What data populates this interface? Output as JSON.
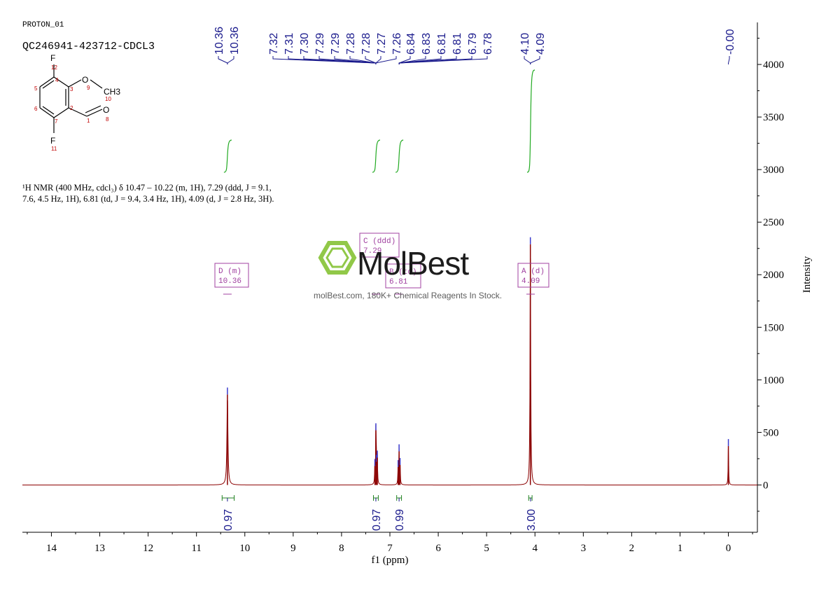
{
  "header": {
    "program": "PROTON_01",
    "sample": "QC246941-423712-CDCL3"
  },
  "description": {
    "text": "¹H NMR (400 MHz, cdcl₃) δ 10.47 – 10.22 (m, 1H), 7.29 (ddd, J = 9.1, 7.6, 4.5 Hz, 1H), 6.81 (td, J = 9.4, 3.4 Hz, 1H), 4.09 (d, J = 2.8 Hz, 3H)."
  },
  "structure": {
    "atoms": [
      {
        "label": "F",
        "index": "12"
      },
      {
        "label": "O",
        "index": "9"
      },
      {
        "label": "CH3",
        "index": "10"
      },
      {
        "label": "O",
        "index": "8"
      },
      {
        "label": "F",
        "index": "11"
      }
    ],
    "ring_indices": [
      "4",
      "3",
      "5",
      "2",
      "6",
      "7",
      "1"
    ]
  },
  "watermark": {
    "brand": "MolBest",
    "tagline": "molBest.com, 180K+ Chemical Reagents In Stock."
  },
  "chart_data": {
    "type": "line",
    "xlabel": "f1 (ppm)",
    "ylabel": "Intensity",
    "xlim": [
      14.6,
      -0.6
    ],
    "ylim": [
      -450,
      4400
    ],
    "x_ticks": [
      14,
      13,
      12,
      11,
      10,
      9,
      8,
      7,
      6,
      5,
      4,
      3,
      2,
      1,
      0
    ],
    "y_ticks": [
      0,
      500,
      1000,
      1500,
      2000,
      2500,
      3000,
      3500,
      4000
    ],
    "spectrum_color": "#8b0000",
    "peaks": [
      {
        "ppm": 10.36,
        "height": 860,
        "width": 0.012
      },
      {
        "ppm": 7.31,
        "height": 180,
        "width": 0.006
      },
      {
        "ppm": 7.29,
        "height": 520,
        "width": 0.006
      },
      {
        "ppm": 7.28,
        "height": 220,
        "width": 0.006
      },
      {
        "ppm": 7.26,
        "height": 260,
        "width": 0.006
      },
      {
        "ppm": 6.83,
        "height": 170,
        "width": 0.006
      },
      {
        "ppm": 6.81,
        "height": 320,
        "width": 0.006
      },
      {
        "ppm": 6.79,
        "height": 190,
        "width": 0.006
      },
      {
        "ppm": 4.095,
        "height": 2290,
        "width": 0.008
      },
      {
        "ppm": 0.0,
        "height": 370,
        "width": 0.006
      }
    ],
    "peak_labels": [
      {
        "group": "a",
        "values": [
          "10.36",
          "10.36"
        ],
        "target_ppm": 10.36
      },
      {
        "group": "b",
        "values": [
          "7.32",
          "7.31",
          "7.30",
          "7.29",
          "7.29",
          "7.28",
          "7.28",
          "7.27",
          "7.26"
        ],
        "target_ppm": 7.29
      },
      {
        "group": "c",
        "values": [
          "6.84",
          "6.83",
          "6.81",
          "6.81",
          "6.79",
          "6.78"
        ],
        "target_ppm": 6.81
      },
      {
        "group": "d",
        "values": [
          "4.10",
          "4.09"
        ],
        "target_ppm": 4.095
      },
      {
        "group": "e",
        "values": [
          "-0.00"
        ],
        "target_ppm": 0.0
      }
    ],
    "multiplets": [
      {
        "letter": "D",
        "mult": "(m)",
        "shift": "10.36",
        "ppm": 10.36
      },
      {
        "letter": "C",
        "mult": "(ddd)",
        "shift": "7.29",
        "ppm": 7.29
      },
      {
        "letter": "B",
        "mult": "(td)",
        "shift": "6.81",
        "ppm": 6.81
      },
      {
        "letter": "A",
        "mult": "(d)",
        "shift": "4.09",
        "ppm": 4.09
      }
    ],
    "integrals": [
      {
        "from": 10.47,
        "to": 10.22,
        "value": "0.97",
        "ppm": 10.36
      },
      {
        "from": 7.34,
        "to": 7.24,
        "value": "0.97",
        "ppm": 7.29
      },
      {
        "from": 6.86,
        "to": 6.76,
        "value": "0.99",
        "ppm": 6.81
      },
      {
        "from": 4.13,
        "to": 4.06,
        "value": "3.00",
        "ppm": 4.09
      }
    ]
  }
}
